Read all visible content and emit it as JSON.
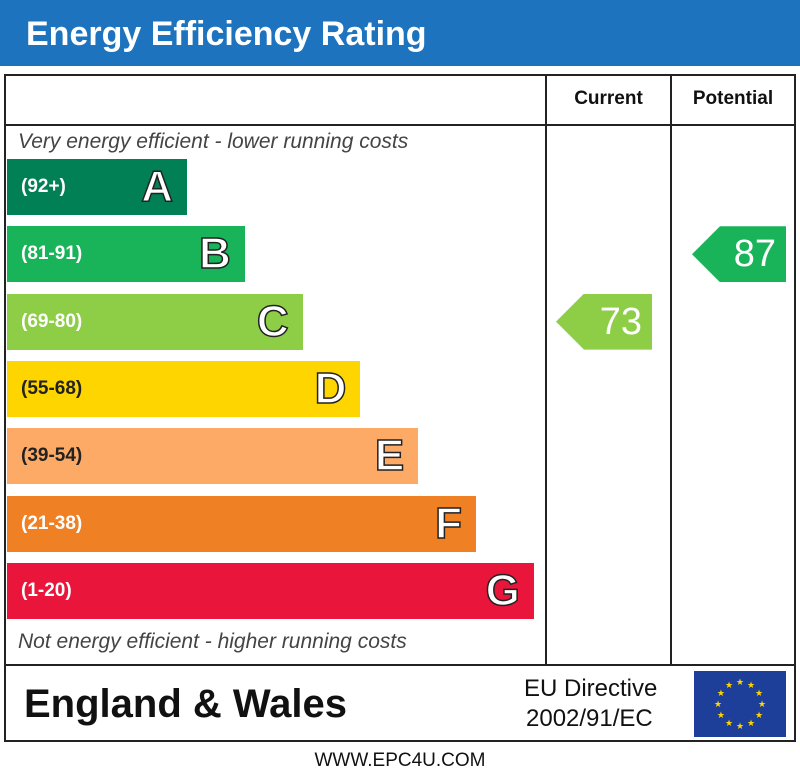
{
  "header": {
    "title": "Energy Efficiency Rating"
  },
  "columns": {
    "current": "Current",
    "potential": "Potential"
  },
  "notes": {
    "top": "Very energy efficient - lower running costs",
    "bottom": "Not energy efficient - higher running costs"
  },
  "chart_data": {
    "type": "bar",
    "categories": [
      "A",
      "B",
      "C",
      "D",
      "E",
      "F",
      "G"
    ],
    "ranges": [
      "(92+)",
      "(81-91)",
      "(69-80)",
      "(55-68)",
      "(39-54)",
      "(21-38)",
      "(1-20)"
    ],
    "band_colors": [
      "#008054",
      "#19b459",
      "#8dce46",
      "#ffd500",
      "#fcaa65",
      "#ef8023",
      "#e9153b"
    ],
    "current": {
      "label": "Current",
      "value": 73,
      "band": "C",
      "color": "#8dce46"
    },
    "potential": {
      "label": "Potential",
      "value": 87,
      "band": "B",
      "color": "#19b459"
    }
  },
  "footer_left": "England & Wales",
  "directive": {
    "line1": "EU Directive",
    "line2": "2002/91/EC"
  },
  "footer_url": "WWW.EPC4U.COM",
  "colors": {
    "header": "#1e73be",
    "flag": "#1d3f9a",
    "stars": "#ffd500"
  }
}
